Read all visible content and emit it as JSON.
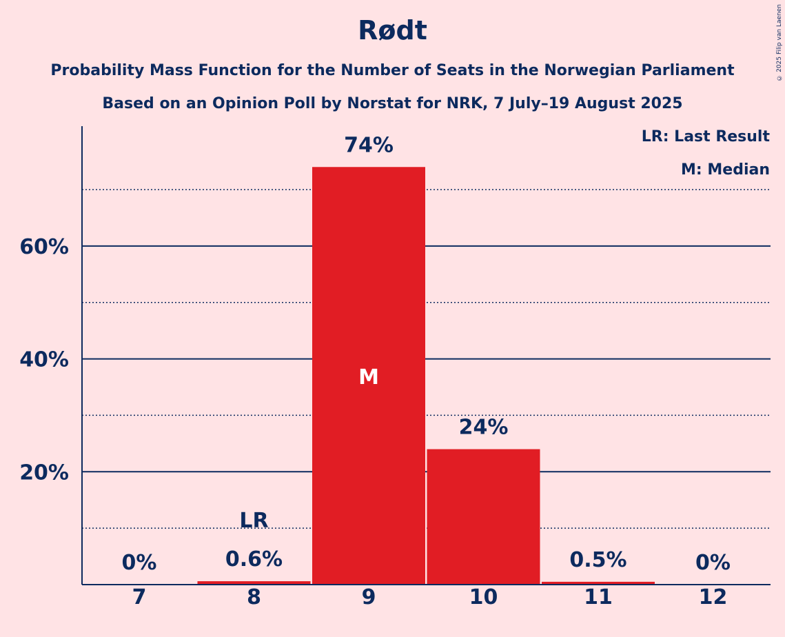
{
  "chart_data": {
    "type": "bar",
    "title": "Rødt",
    "subtitle": "Probability Mass Function for the Number of Seats in the Norwegian Parliament",
    "subtitle2": "Based on an Opinion Poll by Norstat for NRK, 7 July–19 August 2025",
    "categories": [
      "7",
      "8",
      "9",
      "10",
      "11",
      "12"
    ],
    "values": [
      0,
      0.6,
      74,
      24,
      0.5,
      0
    ],
    "value_labels": [
      "0%",
      "0.6%",
      "74%",
      "24%",
      "0.5%",
      "0%"
    ],
    "ylim": [
      0,
      80
    ],
    "yticks_major": [
      20,
      40,
      60
    ],
    "ytick_labels": [
      "20%",
      "40%",
      "60%"
    ],
    "yticks_minor": [
      10,
      30,
      50,
      70
    ],
    "last_result_category": "8",
    "median_category": "9",
    "last_result_marker": "LR",
    "median_marker": "M",
    "legend": [
      "LR: Last Result",
      "M: Median"
    ],
    "bar_color": "#E11D24",
    "text_color": "#0C2A5E",
    "background_color": "#FFE3E5"
  },
  "copyright": "© 2025 Filip van Laenen"
}
